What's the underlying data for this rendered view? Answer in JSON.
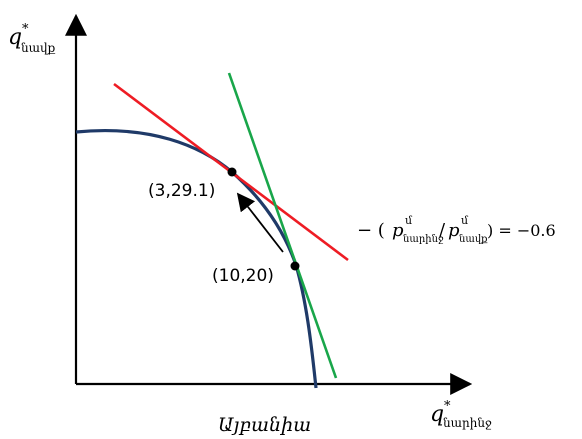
{
  "axes": {
    "y_label": "q",
    "y_superscript": "*",
    "y_subscript": "նավք",
    "x_label": "q",
    "x_superscript": "*",
    "x_subscript": "նարինջ"
  },
  "points": [
    {
      "label": "(3,29.1)"
    },
    {
      "label": "(10,20)"
    }
  ],
  "slope_label": {
    "prefix": "− (",
    "p1": "p",
    "p1_superscript": "մ",
    "p1_subscript": "նարինջ",
    "slash": "/",
    "p2": "p",
    "p2_superscript": "մ",
    "p2_subscript": "նավք",
    "suffix": ") = −0.6"
  },
  "country": "Այբանիա",
  "colors": {
    "curve": "#1f3a68",
    "tangent_a": "#ee1c24",
    "tangent_b": "#19a64a",
    "axis": "#000000",
    "point": "#000000"
  }
}
